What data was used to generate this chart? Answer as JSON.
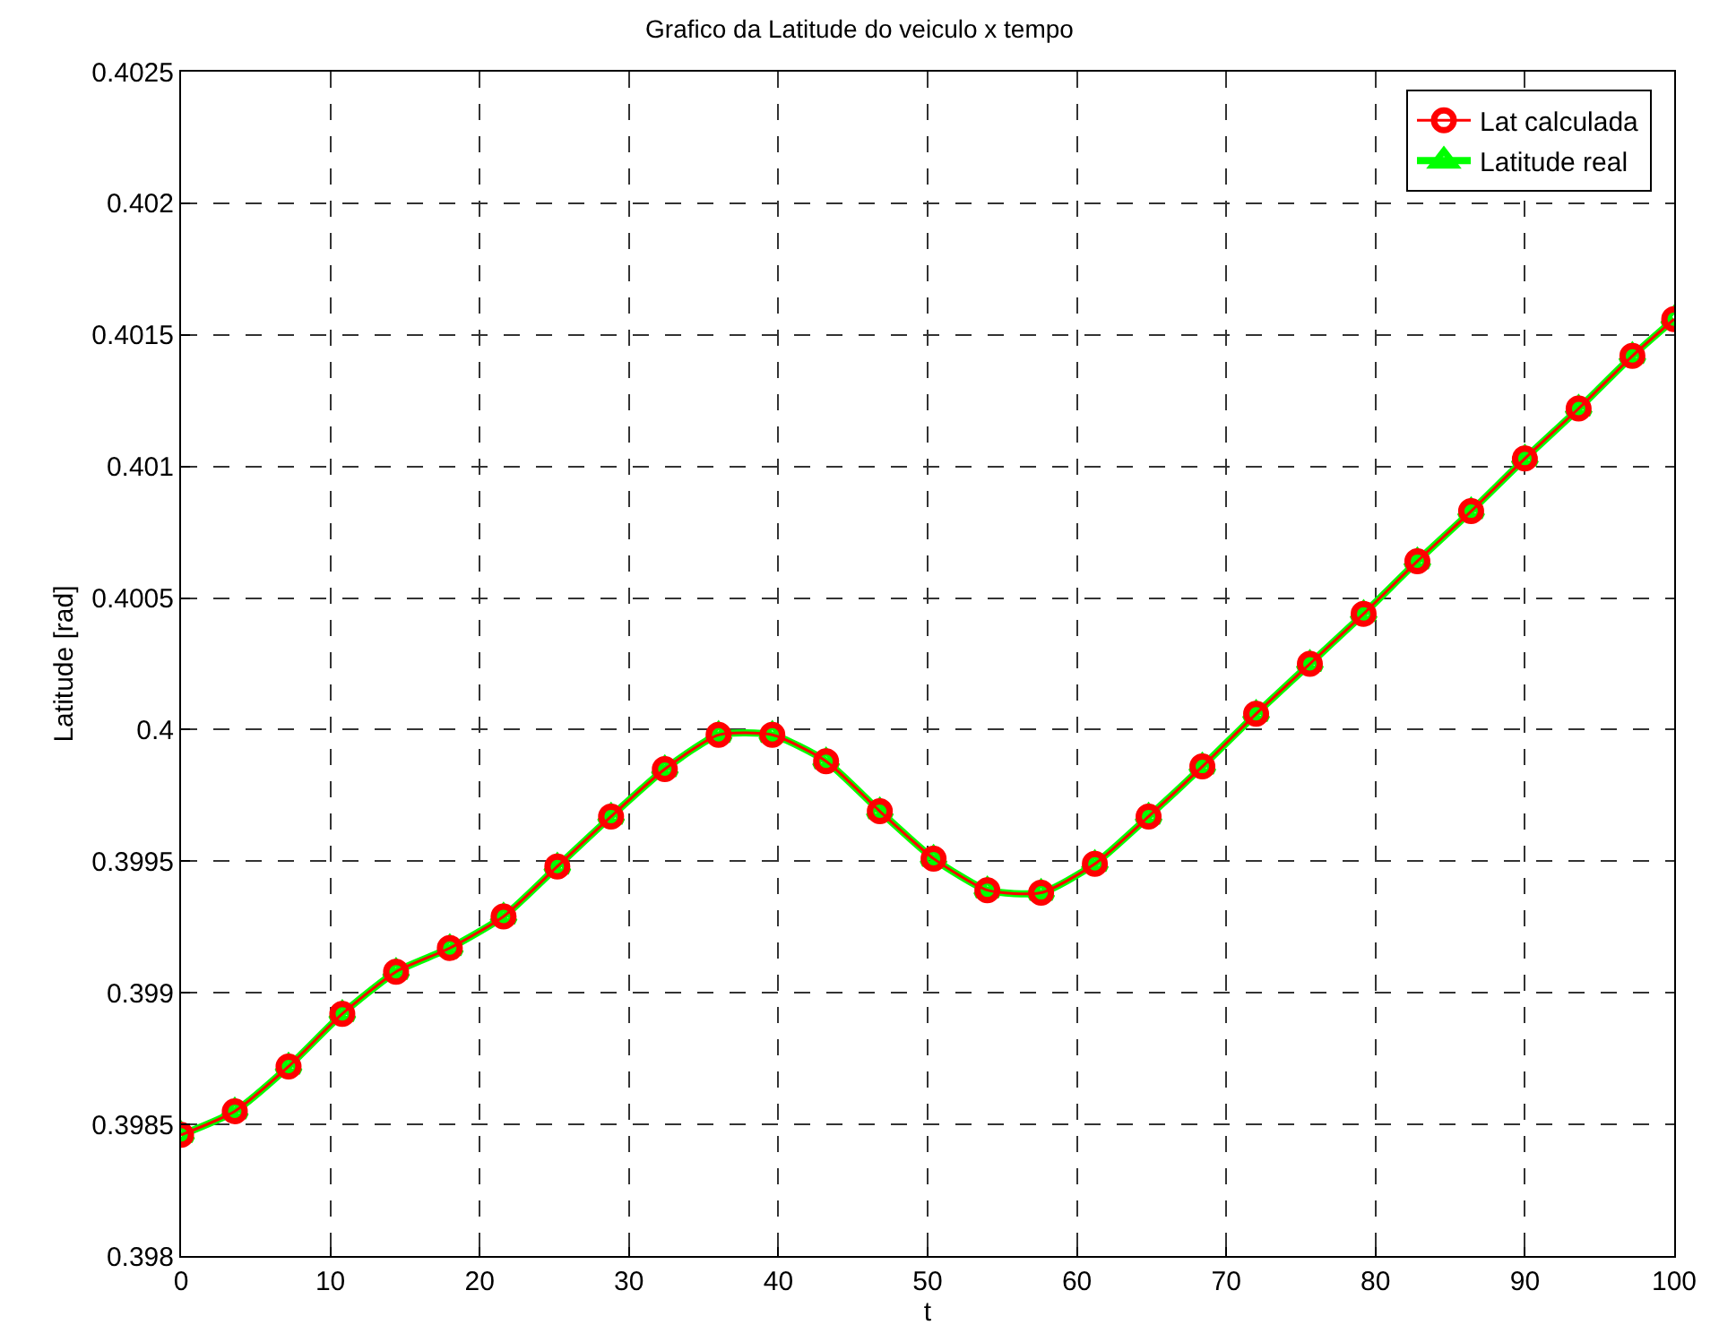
{
  "chart_data": {
    "type": "line",
    "title": "Grafico da Latitude do veiculo x tempo",
    "xlabel": "t",
    "ylabel": "Latitude [rad]",
    "x": [
      0,
      3.6,
      7.2,
      10.8,
      14.4,
      18,
      21.6,
      25.2,
      28.8,
      32.4,
      36,
      39.6,
      43.2,
      46.8,
      50.4,
      54,
      57.6,
      61.2,
      64.8,
      68.4,
      72,
      75.6,
      79.2,
      82.8,
      86.4,
      90,
      93.6,
      97.2,
      100
    ],
    "series": [
      {
        "name": "Lat calculada",
        "color": "#ff0000",
        "marker": "circle",
        "values": [
          0.39846,
          0.39855,
          0.39872,
          0.39892,
          0.39908,
          0.39917,
          0.39929,
          0.39948,
          0.39967,
          0.39985,
          0.39998,
          0.39998,
          0.39988,
          0.39969,
          0.39951,
          0.39939,
          0.39938,
          0.39949,
          0.39967,
          0.39986,
          0.40006,
          0.40025,
          0.40044,
          0.40064,
          0.40083,
          0.40103,
          0.40122,
          0.40142,
          0.40156
        ]
      },
      {
        "name": "Latitude real",
        "color": "#00ff00",
        "marker": "triangle",
        "values": [
          0.39846,
          0.39855,
          0.39872,
          0.39892,
          0.39908,
          0.39917,
          0.39929,
          0.39948,
          0.39967,
          0.39985,
          0.39998,
          0.39998,
          0.39988,
          0.39969,
          0.39951,
          0.39939,
          0.39938,
          0.39949,
          0.39967,
          0.39986,
          0.40006,
          0.40025,
          0.40044,
          0.40064,
          0.40083,
          0.40103,
          0.40122,
          0.40142,
          0.40156
        ]
      }
    ],
    "xlim": [
      0,
      100
    ],
    "xticks": [
      0,
      10,
      20,
      30,
      40,
      50,
      60,
      70,
      80,
      90,
      100
    ],
    "ylim": [
      0.398,
      0.4025
    ],
    "yticks": [
      0.398,
      0.3985,
      0.399,
      0.3995,
      0.4,
      0.4005,
      0.401,
      0.4015,
      0.402,
      0.4025
    ],
    "grid": true,
    "legend": "top right",
    "line_style": "solid"
  }
}
